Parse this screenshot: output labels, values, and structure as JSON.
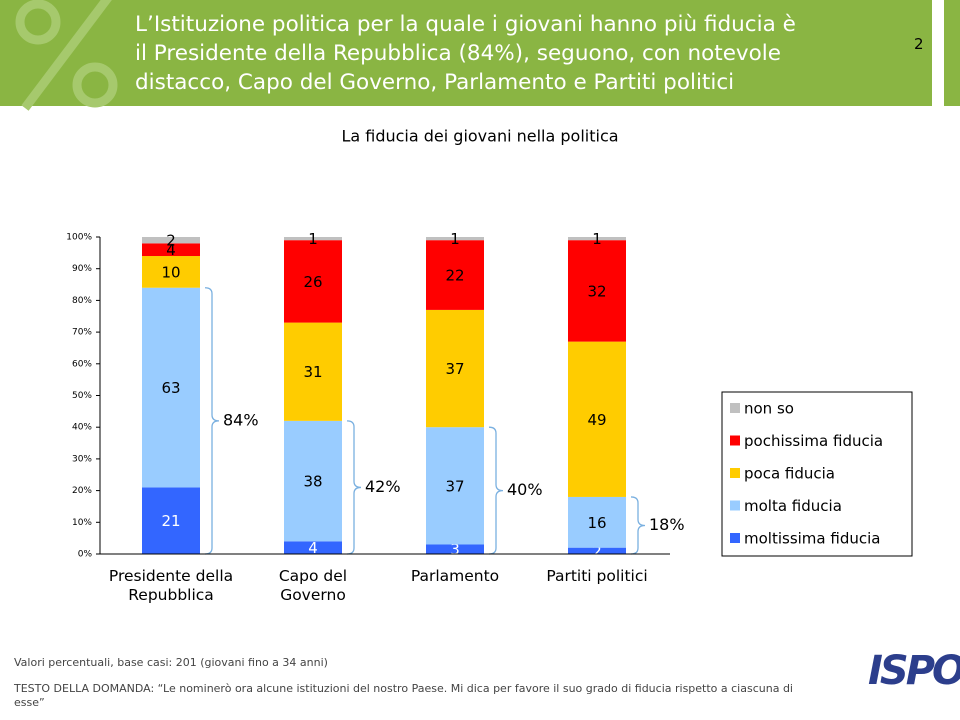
{
  "header": {
    "title_lines": [
      "L’Istituzione politica per la quale i giovani hanno più fiducia è",
      "il Presidente della Repubblica (84%), seguono, con notevole",
      "distacco, Capo del Governo, Parlamento e Partiti politici"
    ],
    "page_number": "2"
  },
  "chart_data": {
    "type": "stacked_bar",
    "title": "La fiducia dei giovani nella politica",
    "categories": [
      "Presidente della Repubblica",
      "Capo del Governo",
      "Parlamento",
      "Partiti politici"
    ],
    "series": [
      {
        "name": "moltissima fiducia",
        "color": "#3366ff",
        "label_color": "#ffffff",
        "values": [
          21,
          4,
          3,
          2
        ]
      },
      {
        "name": "molta fiducia",
        "color": "#99ccff",
        "label_color": "#000000",
        "values": [
          63,
          38,
          37,
          16
        ]
      },
      {
        "name": "poca fiducia",
        "color": "#ffcc00",
        "label_color": "#000000",
        "values": [
          10,
          31,
          37,
          49
        ]
      },
      {
        "name": "pochissima fiducia",
        "color": "#ff0000",
        "label_color": "#000000",
        "values": [
          4,
          26,
          22,
          32
        ]
      },
      {
        "name": "non so",
        "color": "#c0c0c0",
        "label_color": "#000000",
        "values": [
          2,
          1,
          1,
          1
        ]
      }
    ],
    "ylim": [
      0,
      100
    ],
    "yticks": [
      {
        "value": 0,
        "label": "0%"
      },
      {
        "value": 10,
        "label": "10%"
      },
      {
        "value": 20,
        "label": "20%"
      },
      {
        "value": 30,
        "label": "30%"
      },
      {
        "value": 40,
        "label": "40%"
      },
      {
        "value": 50,
        "label": "50%"
      },
      {
        "value": 60,
        "label": "60%"
      },
      {
        "value": 70,
        "label": "70%"
      },
      {
        "value": 80,
        "label": "80%"
      },
      {
        "value": 90,
        "label": "90%"
      },
      {
        "value": 100,
        "label": "100%"
      }
    ],
    "annotations": [
      "84%",
      "42%",
      "40%",
      "18%"
    ],
    "legend": "right"
  },
  "footer": {
    "note": "Valori percentuali, base casi: 201 (giovani fino a 34 anni)",
    "question": "TESTO DELLA DOMANDA: “Le nominerò ora alcune istituzioni del nostro Paese. Mi dica per favore il suo grado di fiducia rispetto a ciascuna di esse”",
    "logo": "ISPO"
  }
}
